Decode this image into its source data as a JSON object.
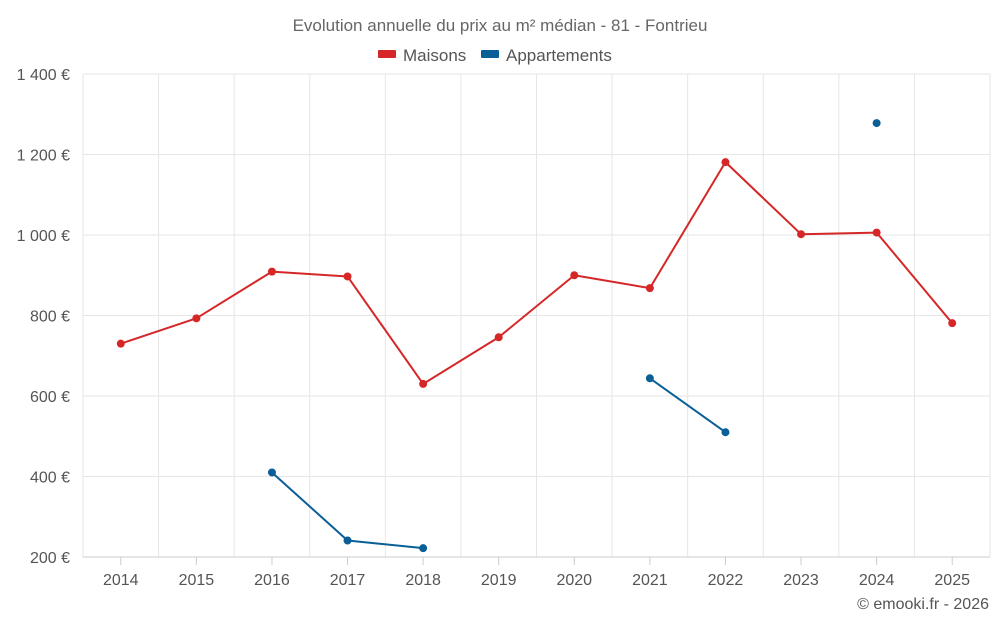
{
  "chart_data": {
    "type": "line",
    "title": "Evolution annuelle du prix au m² médian - 81 - Fontrieu",
    "xlabel": "",
    "ylabel": "",
    "categories": [
      "2014",
      "2015",
      "2016",
      "2017",
      "2018",
      "2019",
      "2020",
      "2021",
      "2022",
      "2023",
      "2024",
      "2025"
    ],
    "ylim": [
      200,
      1400
    ],
    "yticks": [
      200,
      400,
      600,
      800,
      1000,
      1200,
      1400
    ],
    "ytick_labels": [
      "200 €",
      "400 €",
      "600 €",
      "800 €",
      "1 000 €",
      "1 200 €",
      "1 400 €"
    ],
    "grid": true,
    "legend_position": "top",
    "series": [
      {
        "name": "Maisons",
        "color": "#d62728",
        "values": [
          730,
          793,
          909,
          897,
          630,
          746,
          900,
          868,
          1181,
          1002,
          1006,
          781
        ]
      },
      {
        "name": "Appartements",
        "color": "#0a5f96",
        "values": [
          null,
          null,
          410,
          241,
          222,
          null,
          null,
          644,
          510,
          null,
          1278,
          null
        ]
      }
    ]
  },
  "credit": "© emooki.fr - 2026"
}
